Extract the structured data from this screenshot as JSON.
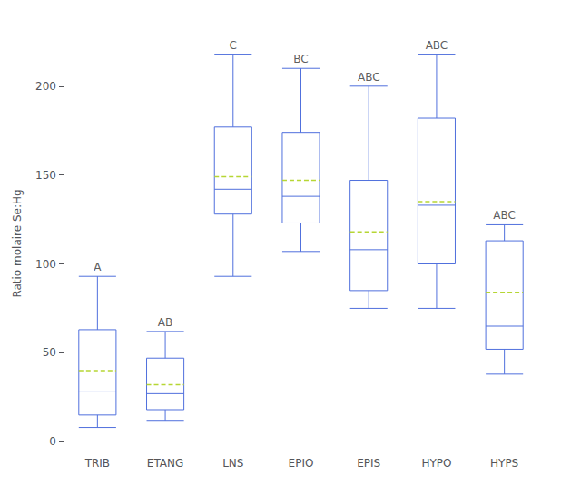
{
  "chart_data": {
    "type": "box",
    "ylabel": "Ratio molaire Se:Hg",
    "categories": [
      "TRIB",
      "ETANG",
      "LNS",
      "EPIO",
      "EPIS",
      "HYPO",
      "HYPS"
    ],
    "boxes": [
      {
        "q1": 15,
        "median": 28,
        "q3": 63,
        "mean": 40,
        "whislo": 8,
        "whishi": 93
      },
      {
        "q1": 18,
        "median": 27,
        "q3": 47,
        "mean": 32,
        "whislo": 12,
        "whishi": 62
      },
      {
        "q1": 128,
        "median": 142,
        "q3": 177,
        "mean": 149,
        "whislo": 93,
        "whishi": 218
      },
      {
        "q1": 123,
        "median": 138,
        "q3": 174,
        "mean": 147,
        "whislo": 107,
        "whishi": 210
      },
      {
        "q1": 85,
        "median": 108,
        "q3": 147,
        "mean": 118,
        "whislo": 75,
        "whishi": 200
      },
      {
        "q1": 100,
        "median": 133,
        "q3": 182,
        "mean": 135,
        "whislo": 75,
        "whishi": 218
      },
      {
        "q1": 52,
        "median": 65,
        "q3": 113,
        "mean": 84,
        "whislo": 38,
        "whishi": 122
      }
    ],
    "annotations": [
      "A",
      "AB",
      "C",
      "BC",
      "ABC",
      "ABC",
      "ABC"
    ],
    "ylim": [
      -5,
      228
    ],
    "yticks": [
      0,
      50,
      100,
      150,
      200
    ],
    "grid": false
  }
}
